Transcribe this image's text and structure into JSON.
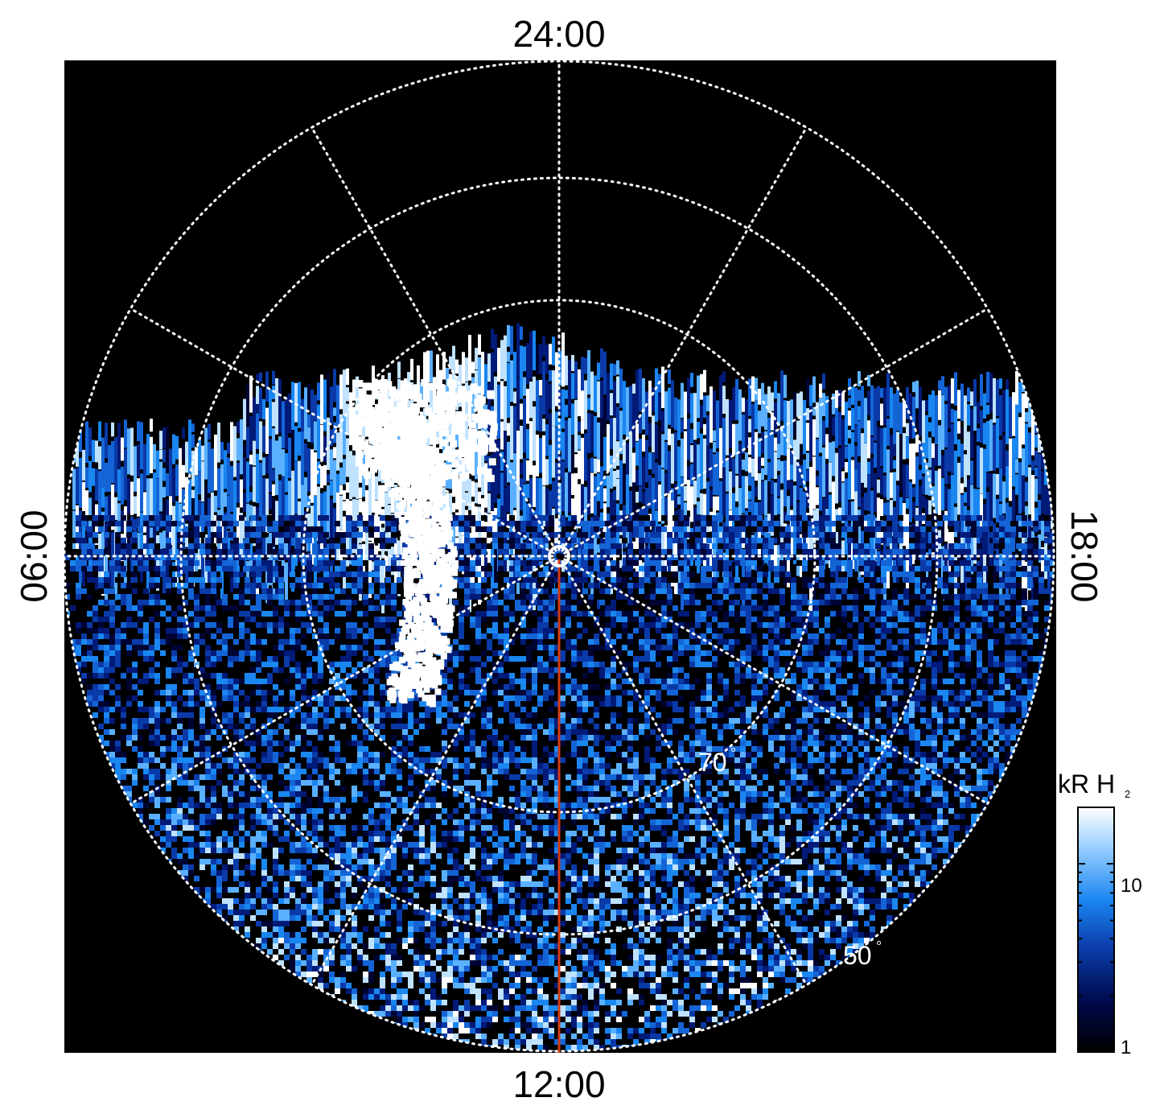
{
  "local_time_labels": {
    "top": "24:00",
    "bottom": "12:00",
    "left": "06:00",
    "right": "18:00"
  },
  "latitude_labels": {
    "inner": "70",
    "outer": "50",
    "degree_symbol": "°"
  },
  "colorbar": {
    "unit": "kR H",
    "unit_subscript": "2",
    "tick_labels": [
      "10",
      "1"
    ],
    "scale": "log",
    "colors": [
      "#000000",
      "#000a4a",
      "#0a3aa8",
      "#1a86f0",
      "#8fcaff",
      "#ffffff"
    ]
  },
  "colors": {
    "background": "#000000",
    "grid": "#ffffff",
    "meridian_line": "#d23a12"
  },
  "icons": {
    "pole_marker": "circle-marker-icon"
  }
}
